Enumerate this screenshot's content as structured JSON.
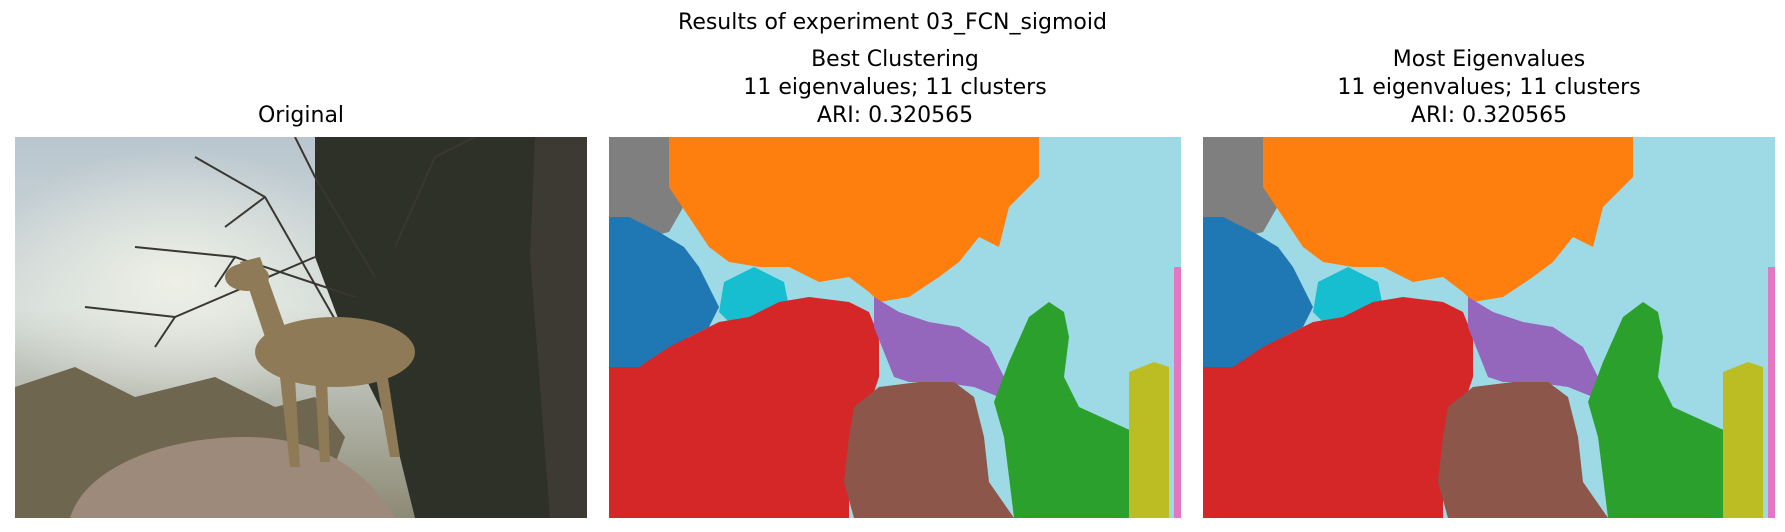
{
  "figure": {
    "suptitle": "Results of experiment 03_FCN_sigmoid"
  },
  "panels": [
    {
      "title_lines": [
        "Original"
      ]
    },
    {
      "title_lines": [
        "Best Clustering",
        "11 eigenvalues; 11 clusters",
        "ARI: 0.320565"
      ]
    },
    {
      "title_lines": [
        "Most Eigenvalues",
        "11 eigenvalues; 11 clusters",
        "ARI: 0.320565"
      ]
    }
  ],
  "colors": {
    "gray": "#7f7f7f",
    "orange": "#ff7f0e",
    "light_blue": "#9edae5",
    "blue": "#1f77b4",
    "cyan": "#17becf",
    "red": "#d62728",
    "purple": "#9467bd",
    "brown": "#8c564b",
    "green": "#2ca02c",
    "olive": "#bcbd22",
    "pink": "#e377c2"
  }
}
